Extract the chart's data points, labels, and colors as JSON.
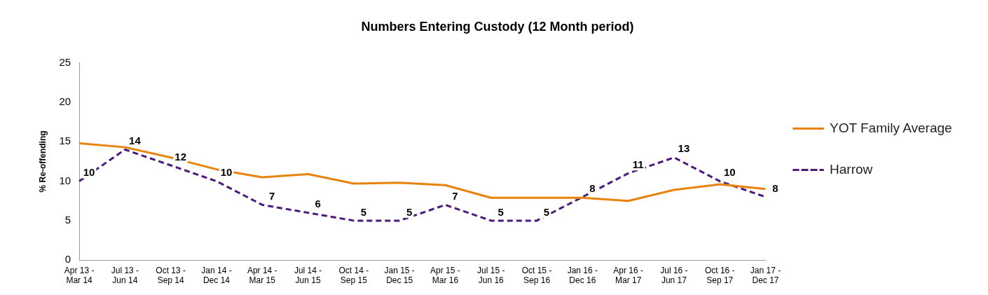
{
  "chart_data": {
    "type": "line",
    "title": "Numbers Entering Custody (12 Month period)",
    "ylabel": "% Re-offending",
    "categories": [
      "Apr 13 - Mar 14",
      "Jul 13 - Jun 14",
      "Oct 13 - Sep 14",
      "Jan 14 - Dec 14",
      "Apr 14 - Mar 15",
      "Jul 14 - Jun 15",
      "Oct 14 - Sep 15",
      "Jan 15 - Dec 15",
      "Apr 15 - Mar 16",
      "Jul 15 - Jun 16",
      "Oct 15 - Sep 16",
      "Jan 16 - Dec 16",
      "Apr 16 - Mar 17",
      "Jul 16 - Jun 17",
      "Oct 16 - Sep 17",
      "Jan 17 - Dec 17"
    ],
    "series": [
      {
        "name": "YOT Family Average",
        "color": "#e8820c",
        "line_style": "solid",
        "values": [
          14.8,
          14.3,
          13.0,
          11.5,
          10.5,
          10.9,
          9.7,
          9.8,
          9.5,
          7.9,
          7.9,
          7.9,
          7.5,
          8.9,
          9.6,
          9.0
        ]
      },
      {
        "name": "Harrow",
        "color": "#4b1a7a",
        "line_style": "dashed",
        "values": [
          10,
          14,
          12,
          10,
          7,
          6,
          5,
          5,
          7,
          5,
          5,
          8,
          11,
          13,
          10,
          8
        ],
        "value_labels": [
          "10",
          "14",
          "12",
          "10",
          "7",
          "6",
          "5",
          "5",
          "7",
          "5",
          "5",
          "8",
          "11",
          "13",
          "10",
          "8"
        ]
      }
    ],
    "ylim": [
      0,
      25
    ],
    "yticks": [
      0,
      5,
      10,
      15,
      20,
      25
    ],
    "grid": false,
    "legend": "right",
    "marker": "none"
  }
}
